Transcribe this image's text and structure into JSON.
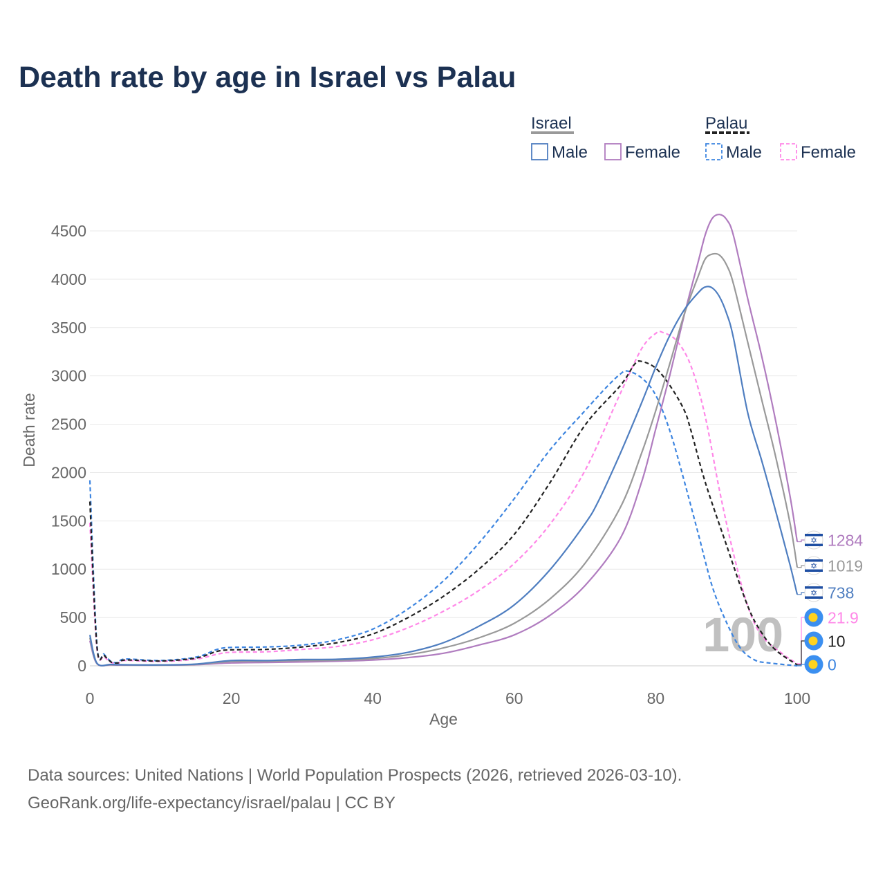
{
  "chart_data": {
    "type": "line",
    "title": "Death rate by age in Israel vs Palau",
    "xlabel": "Age",
    "ylabel": "Death rate",
    "xlim": [
      0,
      100
    ],
    "ylim": [
      0,
      4700
    ],
    "x_ticks": [
      0,
      20,
      40,
      60,
      80,
      100
    ],
    "y_ticks": [
      0,
      500,
      1000,
      1500,
      2000,
      2500,
      3000,
      3500,
      4000,
      4500
    ],
    "grid": true,
    "watermark": "100",
    "legend": {
      "placement": "top-right",
      "groups": [
        {
          "country": "Israel",
          "male_label": "Male",
          "female_label": "Female",
          "line_color": "#999999",
          "dash": false
        },
        {
          "country": "Palau",
          "male_label": "Male",
          "female_label": "Female",
          "line_color": "#222222",
          "dash": true
        }
      ]
    },
    "series": [
      {
        "name": "Israel Total",
        "country": "Israel",
        "sex": "Total",
        "color": "#999999",
        "dashed": false,
        "end_label": "1019",
        "flag": "israel",
        "points": [
          [
            0,
            290
          ],
          [
            1,
            25
          ],
          [
            3,
            12
          ],
          [
            5,
            10
          ],
          [
            10,
            8
          ],
          [
            15,
            15
          ],
          [
            20,
            45
          ],
          [
            25,
            48
          ],
          [
            30,
            55
          ],
          [
            35,
            58
          ],
          [
            40,
            75
          ],
          [
            45,
            115
          ],
          [
            50,
            185
          ],
          [
            55,
            290
          ],
          [
            60,
            440
          ],
          [
            65,
            690
          ],
          [
            70,
            1060
          ],
          [
            75,
            1640
          ],
          [
            78,
            2200
          ],
          [
            80,
            2640
          ],
          [
            82,
            3130
          ],
          [
            84,
            3630
          ],
          [
            86,
            4030
          ],
          [
            87,
            4210
          ],
          [
            88,
            4260
          ],
          [
            89,
            4250
          ],
          [
            90,
            4150
          ],
          [
            91,
            3950
          ],
          [
            93,
            3350
          ],
          [
            95,
            2750
          ],
          [
            97,
            2150
          ],
          [
            99,
            1470
          ],
          [
            100,
            1019
          ]
        ]
      },
      {
        "name": "Israel Male",
        "country": "Israel",
        "sex": "Male",
        "color": "#4f7ec0",
        "dashed": false,
        "end_label": "738",
        "flag": "israel",
        "points": [
          [
            0,
            320
          ],
          [
            1,
            28
          ],
          [
            3,
            14
          ],
          [
            5,
            11
          ],
          [
            10,
            9
          ],
          [
            15,
            18
          ],
          [
            20,
            55
          ],
          [
            25,
            55
          ],
          [
            30,
            65
          ],
          [
            35,
            68
          ],
          [
            40,
            90
          ],
          [
            45,
            140
          ],
          [
            50,
            240
          ],
          [
            55,
            410
          ],
          [
            60,
            630
          ],
          [
            65,
            990
          ],
          [
            70,
            1470
          ],
          [
            72,
            1720
          ],
          [
            75,
            2200
          ],
          [
            78,
            2720
          ],
          [
            80,
            3090
          ],
          [
            82,
            3420
          ],
          [
            84,
            3680
          ],
          [
            86,
            3860
          ],
          [
            87,
            3920
          ],
          [
            88,
            3910
          ],
          [
            89,
            3820
          ],
          [
            90,
            3650
          ],
          [
            91,
            3390
          ],
          [
            93,
            2620
          ],
          [
            95,
            2120
          ],
          [
            97,
            1590
          ],
          [
            99,
            1040
          ],
          [
            100,
            738
          ]
        ]
      },
      {
        "name": "Israel Female",
        "country": "Israel",
        "sex": "Female",
        "color": "#b07cbf",
        "dashed": false,
        "end_label": "1284",
        "flag": "israel",
        "points": [
          [
            0,
            260
          ],
          [
            1,
            22
          ],
          [
            3,
            10
          ],
          [
            5,
            8
          ],
          [
            10,
            7
          ],
          [
            15,
            12
          ],
          [
            20,
            30
          ],
          [
            25,
            35
          ],
          [
            30,
            40
          ],
          [
            35,
            48
          ],
          [
            40,
            60
          ],
          [
            45,
            85
          ],
          [
            50,
            130
          ],
          [
            55,
            215
          ],
          [
            60,
            320
          ],
          [
            65,
            520
          ],
          [
            70,
            830
          ],
          [
            75,
            1320
          ],
          [
            78,
            1900
          ],
          [
            80,
            2450
          ],
          [
            82,
            3010
          ],
          [
            84,
            3620
          ],
          [
            86,
            4180
          ],
          [
            87,
            4460
          ],
          [
            88,
            4630
          ],
          [
            89,
            4670
          ],
          [
            90,
            4620
          ],
          [
            91,
            4450
          ],
          [
            93,
            3800
          ],
          [
            95,
            3200
          ],
          [
            97,
            2520
          ],
          [
            99,
            1750
          ],
          [
            100,
            1284
          ]
        ]
      },
      {
        "name": "Palau Total",
        "country": "Palau",
        "sex": "Total",
        "color": "#222222",
        "dashed": true,
        "end_label": "10",
        "flag": "palau",
        "points": [
          [
            0,
            1700
          ],
          [
            1,
            200
          ],
          [
            2,
            110
          ],
          [
            3,
            40
          ],
          [
            4,
            30
          ],
          [
            5,
            60
          ],
          [
            10,
            50
          ],
          [
            15,
            80
          ],
          [
            18,
            150
          ],
          [
            20,
            165
          ],
          [
            25,
            170
          ],
          [
            30,
            195
          ],
          [
            35,
            240
          ],
          [
            40,
            330
          ],
          [
            45,
            500
          ],
          [
            50,
            720
          ],
          [
            55,
            1000
          ],
          [
            60,
            1360
          ],
          [
            65,
            1890
          ],
          [
            70,
            2490
          ],
          [
            75,
            2900
          ],
          [
            77,
            3120
          ],
          [
            78,
            3150
          ],
          [
            80,
            3080
          ],
          [
            82,
            2900
          ],
          [
            84,
            2650
          ],
          [
            85,
            2430
          ],
          [
            87,
            1900
          ],
          [
            90,
            1250
          ],
          [
            93,
            620
          ],
          [
            95,
            340
          ],
          [
            97,
            160
          ],
          [
            100,
            10
          ]
        ]
      },
      {
        "name": "Palau Male",
        "country": "Palau",
        "sex": "Male",
        "color": "#3d85e0",
        "dashed": true,
        "end_label": "0",
        "flag": "palau",
        "points": [
          [
            0,
            1920
          ],
          [
            1,
            220
          ],
          [
            2,
            120
          ],
          [
            3,
            45
          ],
          [
            4,
            35
          ],
          [
            5,
            70
          ],
          [
            10,
            55
          ],
          [
            15,
            90
          ],
          [
            18,
            170
          ],
          [
            20,
            190
          ],
          [
            25,
            195
          ],
          [
            30,
            215
          ],
          [
            35,
            270
          ],
          [
            40,
            380
          ],
          [
            45,
            590
          ],
          [
            50,
            880
          ],
          [
            55,
            1270
          ],
          [
            60,
            1730
          ],
          [
            65,
            2230
          ],
          [
            70,
            2640
          ],
          [
            73,
            2880
          ],
          [
            75,
            3020
          ],
          [
            76,
            3050
          ],
          [
            78,
            2980
          ],
          [
            80,
            2800
          ],
          [
            82,
            2430
          ],
          [
            84,
            1920
          ],
          [
            86,
            1370
          ],
          [
            88,
            820
          ],
          [
            90,
            450
          ],
          [
            92,
            180
          ],
          [
            94,
            60
          ],
          [
            96,
            30
          ],
          [
            100,
            0
          ]
        ]
      },
      {
        "name": "Palau Female",
        "country": "Palau",
        "sex": "Female",
        "color": "#ff88e8",
        "dashed": true,
        "end_label": "21.9",
        "flag": "palau",
        "points": [
          [
            0,
            1480
          ],
          [
            1,
            180
          ],
          [
            2,
            95
          ],
          [
            3,
            35
          ],
          [
            4,
            25
          ],
          [
            5,
            55
          ],
          [
            10,
            45
          ],
          [
            15,
            70
          ],
          [
            18,
            120
          ],
          [
            20,
            140
          ],
          [
            25,
            145
          ],
          [
            30,
            170
          ],
          [
            35,
            200
          ],
          [
            40,
            270
          ],
          [
            45,
            395
          ],
          [
            50,
            565
          ],
          [
            55,
            780
          ],
          [
            60,
            1060
          ],
          [
            65,
            1460
          ],
          [
            70,
            2020
          ],
          [
            75,
            2820
          ],
          [
            78,
            3280
          ],
          [
            80,
            3440
          ],
          [
            81,
            3450
          ],
          [
            83,
            3360
          ],
          [
            85,
            3100
          ],
          [
            87,
            2580
          ],
          [
            89,
            1820
          ],
          [
            91,
            1160
          ],
          [
            93,
            620
          ],
          [
            95,
            310
          ],
          [
            98,
            120
          ],
          [
            100,
            21.9
          ]
        ]
      }
    ]
  },
  "footer": {
    "sources": "Data sources: United Nations | World Population Prospects (2026, retrieved 2026-03-10).",
    "link": "GeoRank.org/life-expectancy/israel/palau | CC BY"
  }
}
